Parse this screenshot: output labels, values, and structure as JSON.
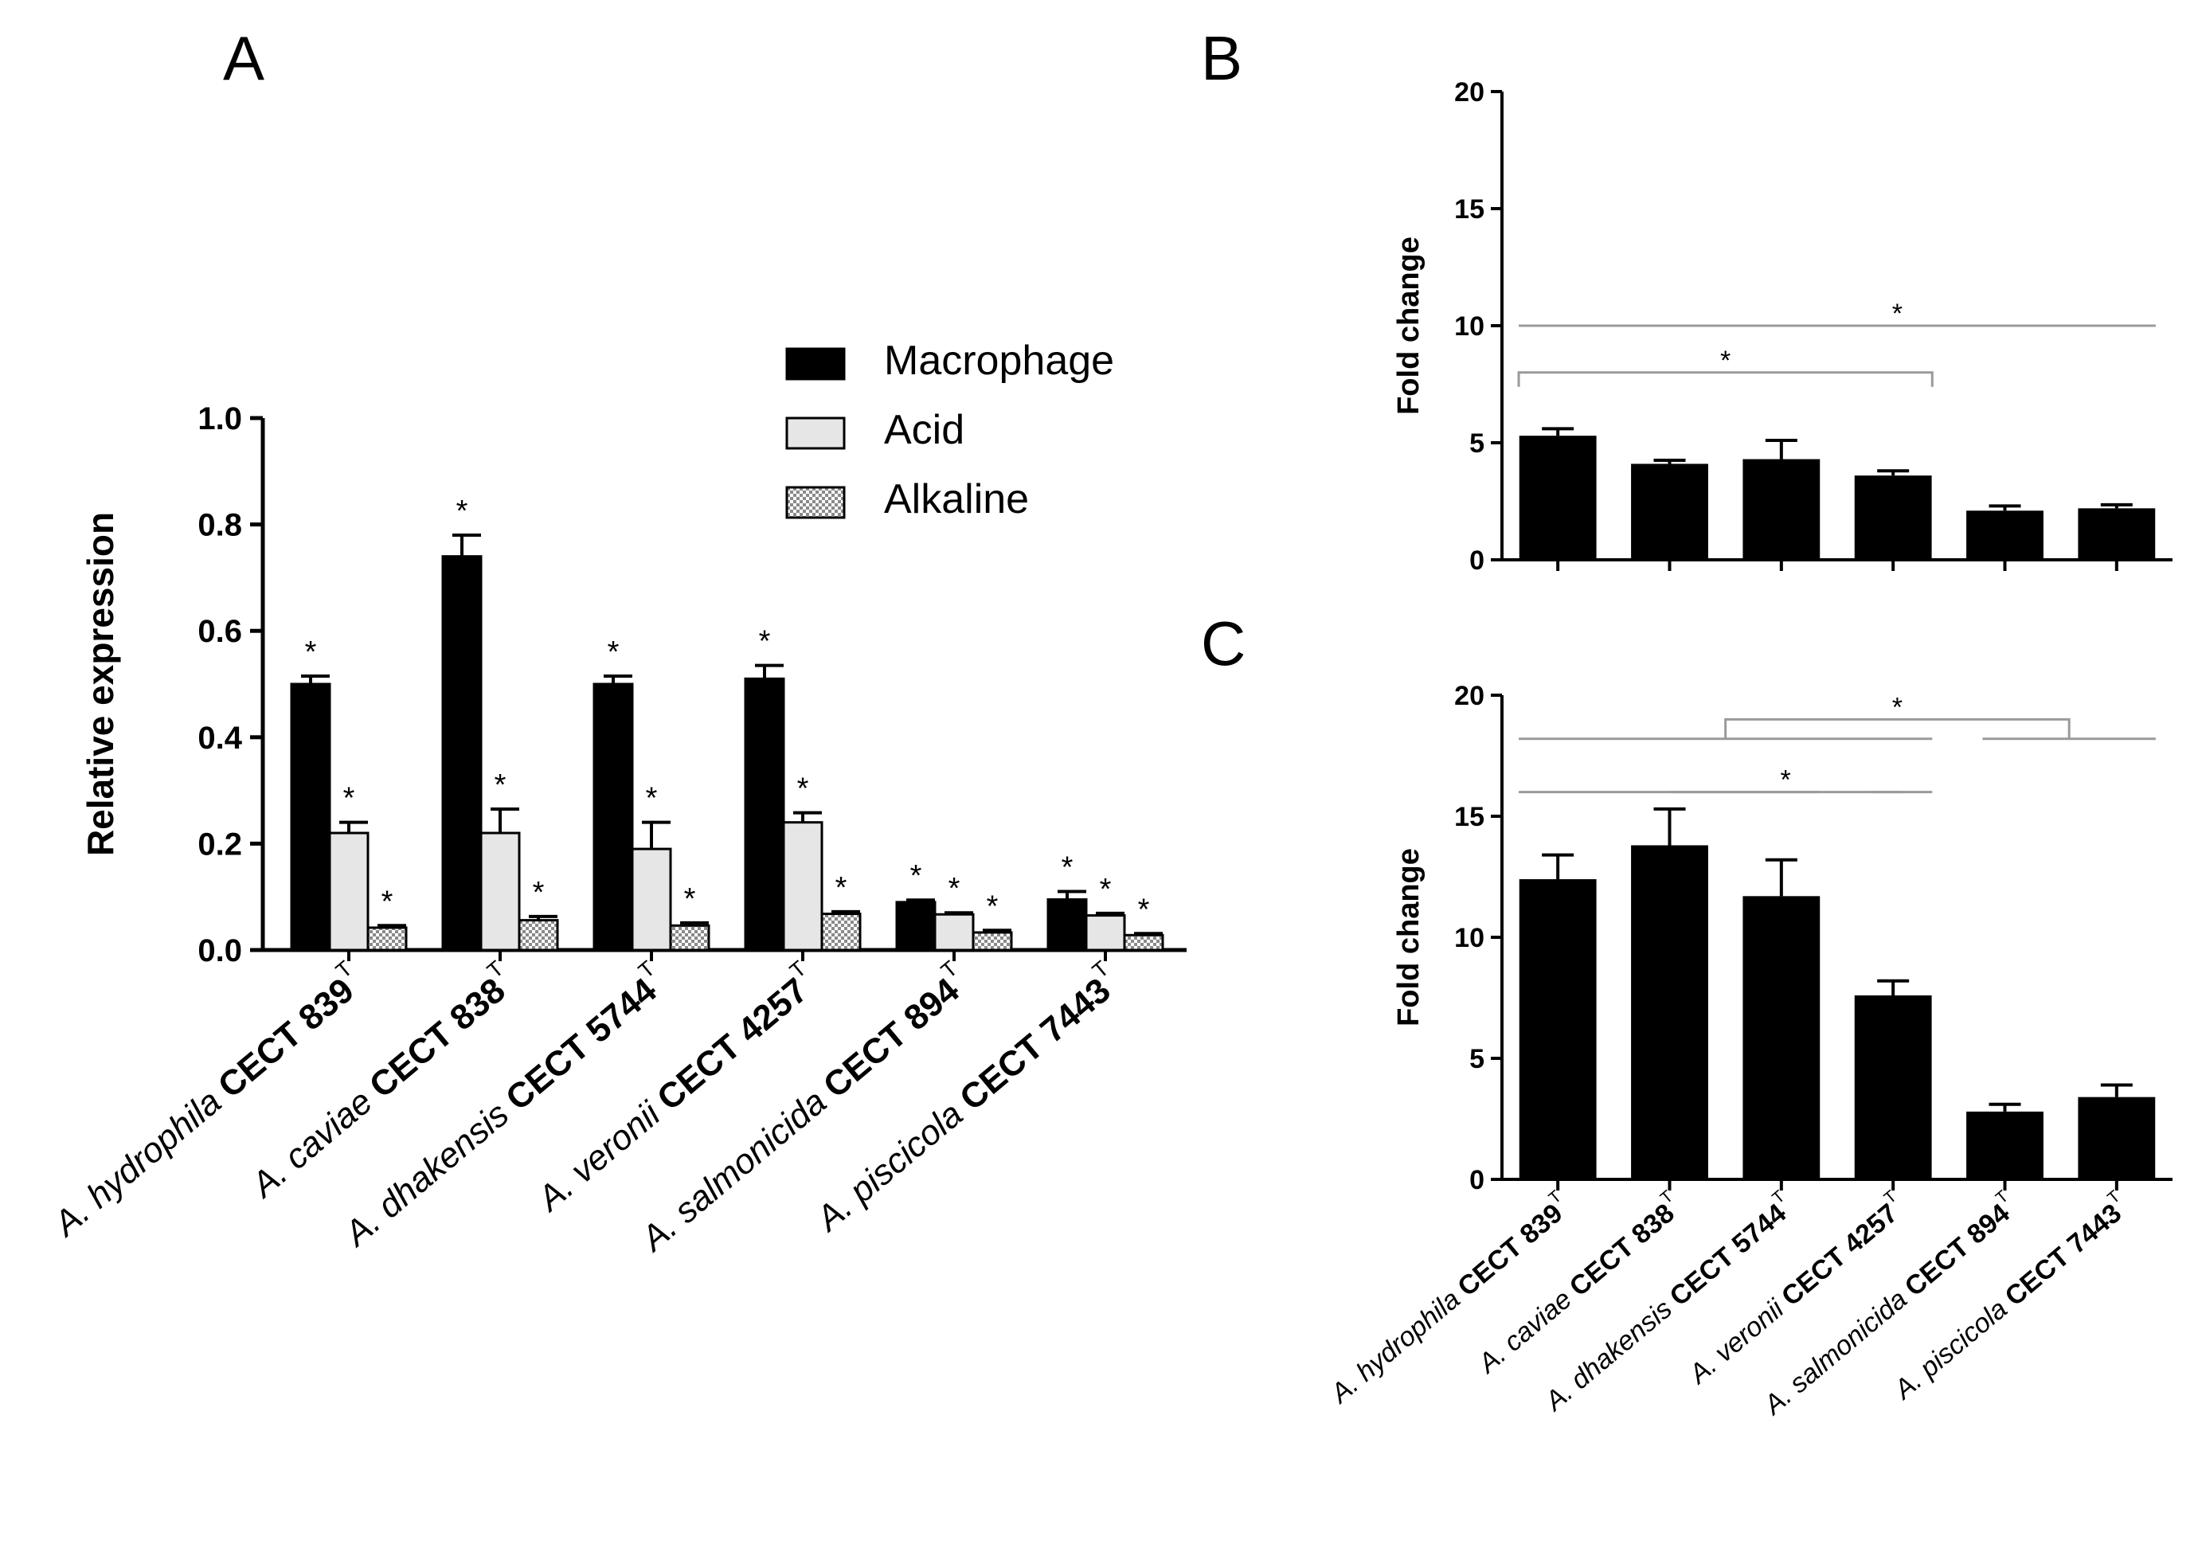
{
  "figure": {
    "panel_labels": [
      "A",
      "B",
      "C"
    ]
  },
  "colors": {
    "macrophage": "#000000",
    "acid": "#e6e6e6",
    "alkaline": "#cfcfcf",
    "bracket": "#9a9a9a"
  },
  "chart_data": [
    {
      "panel": "A",
      "type": "bar",
      "ylabel": "Relative expression",
      "ylim": [
        0,
        1.0
      ],
      "yticks": [
        "0.0",
        "0.2",
        "0.4",
        "0.6",
        "0.8",
        "1.0"
      ],
      "categories": [
        {
          "species": "A. hydrophila",
          "strain": "CECT 839",
          "sup": "T"
        },
        {
          "species": "A. caviae",
          "strain": "CECT 838",
          "sup": "T"
        },
        {
          "species": "A. dhakensis",
          "strain": "CECT 5744",
          "sup": "T"
        },
        {
          "species": "A. veronii",
          "strain": "CECT 4257",
          "sup": "T"
        },
        {
          "species": "A. salmonicida",
          "strain": "CECT 894",
          "sup": "T"
        },
        {
          "species": "A. piscicola",
          "strain": "CECT 7443",
          "sup": "T"
        }
      ],
      "series": [
        {
          "name": "Macrophage",
          "values": [
            0.5,
            0.74,
            0.5,
            0.51,
            0.09,
            0.095
          ],
          "errors": [
            0.015,
            0.04,
            0.015,
            0.025,
            0.004,
            0.015
          ],
          "significant": [
            true,
            true,
            true,
            true,
            true,
            true
          ]
        },
        {
          "name": "Acid",
          "values": [
            0.22,
            0.22,
            0.19,
            0.24,
            0.067,
            0.065
          ],
          "errors": [
            0.02,
            0.045,
            0.05,
            0.018,
            0.003,
            0.004
          ],
          "significant": [
            true,
            true,
            true,
            true,
            true,
            true
          ]
        },
        {
          "name": "Alkaline",
          "values": [
            0.042,
            0.056,
            0.046,
            0.068,
            0.033,
            0.028
          ],
          "errors": [
            0.004,
            0.007,
            0.005,
            0.004,
            0.004,
            0.003
          ],
          "significant": [
            true,
            true,
            true,
            true,
            true,
            true
          ]
        }
      ],
      "significance_mark": "*",
      "legend": [
        "Macrophage",
        "Acid",
        "Alkaline"
      ],
      "legend_position": "top-right"
    },
    {
      "panel": "B",
      "type": "bar",
      "ylabel": "Fold change",
      "ylim": [
        0,
        20
      ],
      "yticks": [
        "0",
        "5",
        "10",
        "15",
        "20"
      ],
      "categories": [
        {
          "species": "A. hydrophila",
          "strain": "CECT 839",
          "sup": "T"
        },
        {
          "species": "A. caviae",
          "strain": "CECT 838",
          "sup": "T"
        },
        {
          "species": "A. dhakensis",
          "strain": "CECT 5744",
          "sup": "T"
        },
        {
          "species": "A. veronii",
          "strain": "CECT 4257",
          "sup": "T"
        },
        {
          "species": "A. salmonicida",
          "strain": "CECT 894",
          "sup": "T"
        },
        {
          "species": "A. piscicola",
          "strain": "CECT 7443",
          "sup": "T"
        }
      ],
      "values": [
        5.3,
        4.1,
        4.3,
        3.6,
        2.1,
        2.2
      ],
      "errors": [
        0.3,
        0.15,
        0.8,
        0.2,
        0.2,
        0.15
      ],
      "brackets": [
        {
          "type": "group",
          "left": [
            0,
            3
          ],
          "right": [
            4,
            5
          ],
          "label": "*",
          "level": 10
        },
        {
          "type": "pair",
          "from": 0,
          "to": 3,
          "label": "*",
          "level": 8
        }
      ]
    },
    {
      "panel": "C",
      "type": "bar",
      "ylabel": "Fold change",
      "ylim": [
        0,
        20
      ],
      "yticks": [
        "0",
        "5",
        "10",
        "15",
        "20"
      ],
      "categories": [
        {
          "species": "A. hydrophila",
          "strain": "CECT 839",
          "sup": "T"
        },
        {
          "species": "A. caviae",
          "strain": "CECT 838",
          "sup": "T"
        },
        {
          "species": "A. dhakensis",
          "strain": "CECT 5744",
          "sup": "T"
        },
        {
          "species": "A. veronii",
          "strain": "CECT 4257",
          "sup": "T"
        },
        {
          "species": "A. salmonicida",
          "strain": "CECT 894",
          "sup": "T"
        },
        {
          "species": "A. piscicola",
          "strain": "CECT 7443",
          "sup": "T"
        }
      ],
      "values": [
        12.4,
        13.8,
        11.7,
        7.6,
        2.8,
        3.4
      ],
      "errors": [
        1.0,
        1.5,
        1.5,
        0.6,
        0.3,
        0.5
      ],
      "brackets": [
        {
          "type": "group",
          "left": [
            0,
            3
          ],
          "right": [
            4,
            5
          ],
          "label": "*",
          "level": 19
        },
        {
          "type": "group",
          "left": [
            0,
            2
          ],
          "right": [
            3,
            3
          ],
          "label": "*",
          "level": 16
        }
      ]
    }
  ]
}
